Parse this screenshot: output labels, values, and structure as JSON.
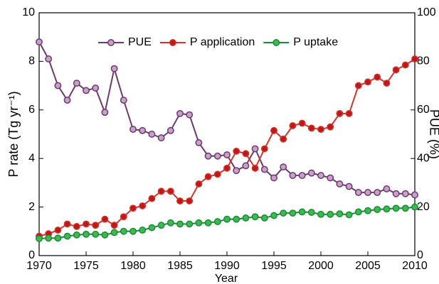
{
  "chart_data": {
    "type": "line",
    "x_label": "Year",
    "y_label": "P rate (Tg yr⁻¹)",
    "y2_label": "PUE (%)",
    "x": [
      1970,
      1971,
      1972,
      1973,
      1974,
      1975,
      1976,
      1977,
      1978,
      1979,
      1980,
      1981,
      1982,
      1983,
      1984,
      1985,
      1986,
      1987,
      1988,
      1989,
      1990,
      1991,
      1992,
      1993,
      1994,
      1995,
      1996,
      1997,
      1998,
      1999,
      2000,
      2001,
      2002,
      2003,
      2004,
      2005,
      2006,
      2007,
      2008,
      2009,
      2010
    ],
    "xlim": [
      1970,
      2010
    ],
    "xticks": [
      1970,
      1975,
      1980,
      1985,
      1990,
      1995,
      2000,
      2005,
      2010
    ],
    "ylim": [
      0,
      10
    ],
    "yticks": [
      0,
      2,
      4,
      6,
      8,
      10
    ],
    "y2lim": [
      0,
      100
    ],
    "y2ticks": [
      0,
      20,
      40,
      60,
      80,
      100
    ],
    "legend": "top",
    "series": [
      {
        "name": "PUE",
        "color": "#6b3a6b",
        "marker_color": "#c9a0c9",
        "axis": "y2",
        "values": [
          88,
          81,
          70,
          64,
          71,
          68,
          69,
          59,
          77,
          64,
          52,
          51.5,
          50,
          48.5,
          51.5,
          58.5,
          58,
          46.5,
          41,
          41,
          41.5,
          35,
          37,
          44,
          35.5,
          32,
          36.5,
          33,
          33,
          34,
          33,
          32,
          29.5,
          28.5,
          26,
          26,
          26,
          27.5,
          25.5,
          25.5,
          25
        ]
      },
      {
        "name": "P application",
        "color": "#d0342c",
        "marker_color": "#c01818",
        "values": [
          0.8,
          0.9,
          1.05,
          1.3,
          1.2,
          1.3,
          1.25,
          1.5,
          1.25,
          1.6,
          1.95,
          2.05,
          2.35,
          2.65,
          2.65,
          2.25,
          2.25,
          2.95,
          3.25,
          3.35,
          3.6,
          4.3,
          4.2,
          3.6,
          4.4,
          5.15,
          4.8,
          5.35,
          5.45,
          5.25,
          5.2,
          5.3,
          5.85,
          5.85,
          7.0,
          7.15,
          7.35,
          7.1,
          7.65,
          7.85,
          8.1
        ]
      },
      {
        "name": "P uptake",
        "color": "#1a8a3a",
        "marker_color": "#3dbb4a",
        "values": [
          0.7,
          0.72,
          0.72,
          0.8,
          0.85,
          0.88,
          0.88,
          0.85,
          0.95,
          1.0,
          1.0,
          1.05,
          1.15,
          1.25,
          1.35,
          1.3,
          1.3,
          1.35,
          1.35,
          1.4,
          1.5,
          1.5,
          1.55,
          1.6,
          1.55,
          1.65,
          1.75,
          1.75,
          1.8,
          1.78,
          1.7,
          1.7,
          1.72,
          1.68,
          1.8,
          1.85,
          1.9,
          1.92,
          1.95,
          1.95,
          2.0
        ]
      }
    ]
  }
}
